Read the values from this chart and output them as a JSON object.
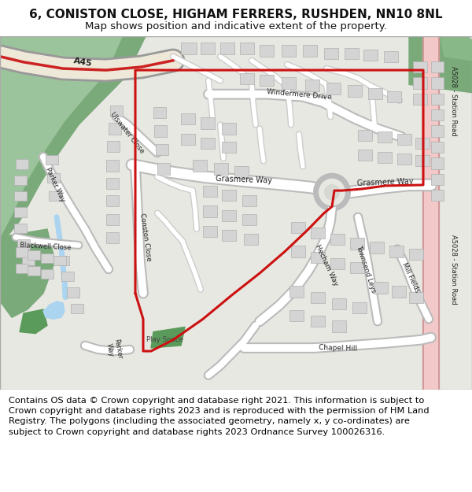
{
  "title_line1": "6, CONISTON CLOSE, HIGHAM FERRERS, RUSHDEN, NN10 8NL",
  "title_line2": "Map shows position and indicative extent of the property.",
  "footer_text": "Contains OS data © Crown copyright and database right 2021. This information is subject to Crown copyright and database rights 2023 and is reproduced with the permission of HM Land Registry. The polygons (including the associated geometry, namely x, y co-ordinates) are subject to Crown copyright and database rights 2023 Ordnance Survey 100026316.",
  "map_bg": "#e8e8e2",
  "road_color": "#ffffff",
  "road_outline_color": "#bbbbbb",
  "green_dark": "#7aaa7a",
  "green_light": "#9cc49c",
  "green_medium": "#88b888",
  "pink_road": "#f2c8c8",
  "pink_road_outline": "#d09898",
  "red_line": "#cc1111",
  "blue_water": "#aad4f0",
  "building_color": "#d4d4d4",
  "building_edge": "#b0b0b0",
  "title_fontsize": 11,
  "subtitle_fontsize": 9.5,
  "footer_fontsize": 8.2,
  "figsize": [
    6.0,
    6.25
  ],
  "dpi": 100
}
